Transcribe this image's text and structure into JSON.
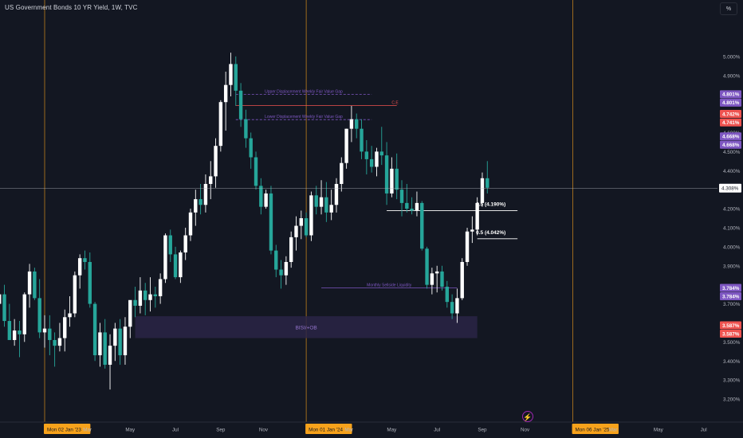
{
  "header": {
    "title": "US Government Bonds 10 YR Yield, 1W, TVC",
    "unit": "%"
  },
  "chart_data": {
    "type": "candlestick",
    "title": "US Government Bonds 10 YR Yield, 1W, TVC",
    "ylim": [
      3.15,
      5.15
    ],
    "y_ticks": [
      "5.000%",
      "4.900%",
      "4.600%",
      "4.500%",
      "4.400%",
      "4.200%",
      "4.100%",
      "4.000%",
      "3.900%",
      "3.700%",
      "3.500%",
      "3.400%",
      "3.300%",
      "3.200%"
    ],
    "x_labels": [
      {
        "label": "Nov",
        "week": -10
      },
      {
        "label": "Mon 02 Jan '23",
        "week": 0,
        "highlight": true
      },
      {
        "label": "Mar",
        "week": 8.5
      },
      {
        "label": "May",
        "week": 17
      },
      {
        "label": "Jul",
        "week": 26
      },
      {
        "label": "Sep",
        "week": 35
      },
      {
        "label": "Nov",
        "week": 43.5
      },
      {
        "label": "Mon 01 Jan '24",
        "week": 52,
        "highlight": true
      },
      {
        "label": "Mar",
        "week": 60.5
      },
      {
        "label": "May",
        "week": 69
      },
      {
        "label": "Jul",
        "week": 78
      },
      {
        "label": "Sep",
        "week": 87
      },
      {
        "label": "Nov",
        "week": 95.5
      },
      {
        "label": "Mon 06 Jan '25",
        "week": 105,
        "highlight": true
      },
      {
        "label": "Mar",
        "week": 113
      },
      {
        "label": "May",
        "week": 122
      },
      {
        "label": "Jul",
        "week": 131
      }
    ],
    "vlines_weeks": [
      0,
      52,
      105
    ],
    "last_price": "4.308%",
    "price_labels": [
      {
        "text": "4.801%",
        "value": 4.801,
        "color": "#7e57c2"
      },
      {
        "text": "4.801%",
        "value": 4.801,
        "color": "#7e57c2"
      },
      {
        "text": "4.742%",
        "value": 4.742,
        "color": "#ef5350"
      },
      {
        "text": "4.741%",
        "value": 4.741,
        "color": "#ef5350"
      },
      {
        "text": "4.668%",
        "value": 4.668,
        "color": "#7e57c2"
      },
      {
        "text": "4.668%",
        "value": 4.668,
        "color": "#7e57c2"
      },
      {
        "text": "3.784%",
        "value": 3.784,
        "color": "#7e57c2"
      },
      {
        "text": "3.784%",
        "value": 3.784,
        "color": "#7e57c2"
      },
      {
        "text": "3.587%",
        "value": 3.587,
        "color": "#ef5350"
      },
      {
        "text": "3.587%",
        "value": 3.587,
        "color": "#ef5350"
      }
    ],
    "annotations": [
      {
        "text": "Upper Displacement Weekly Fair Value Gap",
        "value": 4.801,
        "w0": 38,
        "w1": 65,
        "style": "dashed",
        "color": "#7e57c2"
      },
      {
        "text": "Lower Displacement Weekly Fair Value Gap",
        "value": 4.668,
        "w0": 38,
        "w1": 65,
        "style": "dashed",
        "color": "#7e57c2"
      },
      {
        "text": "C.E",
        "value": 4.742,
        "w0": 38,
        "w1": 70,
        "style": "solid",
        "color": "#ef5350"
      },
      {
        "text": "Monthly Sellside Liquidity",
        "value": 3.784,
        "w0": 55,
        "w1": 82,
        "style": "solid",
        "color": "#7e57c2"
      },
      {
        "text": "0.5 (4.190%)",
        "value": 4.19,
        "w0": 68,
        "w1": 94,
        "style": "solid",
        "color": "#ffffff"
      },
      {
        "text": "0.5 (4.042%)",
        "value": 4.042,
        "w0": 86,
        "w1": 94,
        "style": "solid",
        "color": "#ffffff"
      }
    ],
    "zones": [
      {
        "text": "BISI/+OB",
        "y0": 3.52,
        "y1": 3.635,
        "w0": 18,
        "w1": 86,
        "color": "#2a2545"
      }
    ],
    "candles": [
      [
        -12,
        4.17,
        4.25,
        4.05,
        4.08
      ],
      [
        -11,
        4.08,
        4.12,
        3.8,
        3.83
      ],
      [
        -10,
        3.83,
        3.91,
        3.65,
        3.7
      ],
      [
        -9,
        3.7,
        3.77,
        3.62,
        3.75
      ],
      [
        -8,
        3.75,
        3.8,
        3.58,
        3.61
      ],
      [
        -7,
        3.61,
        3.7,
        3.51,
        3.51
      ],
      [
        -6,
        3.51,
        3.62,
        3.48,
        3.56
      ],
      [
        -5,
        3.56,
        3.61,
        3.42,
        3.54
      ],
      [
        -4,
        3.54,
        3.76,
        3.5,
        3.75
      ],
      [
        -3,
        3.75,
        3.91,
        3.68,
        3.87
      ],
      [
        -2,
        3.87,
        3.89,
        3.72,
        3.73
      ],
      [
        -1,
        3.73,
        3.83,
        3.52,
        3.55
      ],
      [
        0,
        3.55,
        3.64,
        3.47,
        3.57
      ],
      [
        1,
        3.57,
        3.64,
        3.43,
        3.51
      ],
      [
        2,
        3.51,
        3.55,
        3.37,
        3.48
      ],
      [
        3,
        3.48,
        3.6,
        3.45,
        3.52
      ],
      [
        4,
        3.52,
        3.67,
        3.45,
        3.63
      ],
      [
        5,
        3.63,
        3.74,
        3.58,
        3.65
      ],
      [
        6,
        3.65,
        3.87,
        3.63,
        3.85
      ],
      [
        7,
        3.85,
        3.96,
        3.78,
        3.94
      ],
      [
        8,
        3.94,
        3.98,
        3.88,
        3.92
      ],
      [
        9,
        3.92,
        3.97,
        3.68,
        3.7
      ],
      [
        10,
        3.7,
        3.71,
        3.4,
        3.43
      ],
      [
        11,
        3.43,
        3.6,
        3.37,
        3.55
      ],
      [
        12,
        3.55,
        3.62,
        3.36,
        3.38
      ],
      [
        13,
        3.38,
        3.54,
        3.25,
        3.48
      ],
      [
        14,
        3.48,
        3.6,
        3.4,
        3.57
      ],
      [
        15,
        3.57,
        3.62,
        3.38,
        3.43
      ],
      [
        16,
        3.43,
        3.63,
        3.38,
        3.58
      ],
      [
        17,
        3.58,
        3.71,
        3.52,
        3.72
      ],
      [
        18,
        3.72,
        3.79,
        3.63,
        3.69
      ],
      [
        19,
        3.69,
        3.84,
        3.65,
        3.77
      ],
      [
        20,
        3.77,
        3.81,
        3.64,
        3.72
      ],
      [
        21,
        3.72,
        3.84,
        3.66,
        3.75
      ],
      [
        22,
        3.75,
        3.79,
        3.68,
        3.74
      ],
      [
        23,
        3.74,
        3.86,
        3.7,
        3.83
      ],
      [
        24,
        3.83,
        4.07,
        3.81,
        4.06
      ],
      [
        25,
        4.06,
        4.09,
        3.92,
        3.96
      ],
      [
        26,
        3.96,
        4.0,
        3.83,
        3.84
      ],
      [
        27,
        3.84,
        3.98,
        3.81,
        3.97
      ],
      [
        28,
        3.97,
        4.1,
        3.93,
        4.06
      ],
      [
        29,
        4.06,
        4.2,
        4.03,
        4.18
      ],
      [
        30,
        4.18,
        4.3,
        4.11,
        4.25
      ],
      [
        31,
        4.25,
        4.33,
        4.17,
        4.22
      ],
      [
        32,
        4.22,
        4.38,
        4.18,
        4.33
      ],
      [
        33,
        4.33,
        4.45,
        4.25,
        4.37
      ],
      [
        34,
        4.37,
        4.57,
        4.31,
        4.53
      ],
      [
        35,
        4.53,
        4.77,
        4.5,
        4.76
      ],
      [
        36,
        4.76,
        4.92,
        4.61,
        4.85
      ],
      [
        37,
        4.85,
        5.02,
        4.79,
        4.96
      ],
      [
        38,
        4.96,
        5.0,
        4.74,
        4.82
      ],
      [
        39,
        4.82,
        4.86,
        4.63,
        4.67
      ],
      [
        40,
        4.67,
        4.72,
        4.52,
        4.57
      ],
      [
        41,
        4.57,
        4.6,
        4.41,
        4.47
      ],
      [
        42,
        4.47,
        4.5,
        4.3,
        4.32
      ],
      [
        43,
        4.32,
        4.36,
        4.17,
        4.21
      ],
      [
        44,
        4.21,
        4.3,
        4.2,
        4.28
      ],
      [
        45,
        4.28,
        4.32,
        3.96,
        3.98
      ],
      [
        46,
        3.98,
        4.01,
        3.84,
        3.88
      ],
      [
        47,
        3.88,
        3.93,
        3.78,
        3.85
      ],
      [
        48,
        3.85,
        3.95,
        3.8,
        3.92
      ],
      [
        49,
        3.92,
        4.08,
        3.89,
        4.05
      ],
      [
        50,
        4.05,
        4.16,
        3.98,
        4.11
      ],
      [
        51,
        4.11,
        4.19,
        4.04,
        4.15
      ],
      [
        52,
        4.15,
        4.18,
        4.05,
        4.06
      ],
      [
        53,
        4.06,
        4.29,
        4.03,
        4.27
      ],
      [
        54,
        4.27,
        4.32,
        4.17,
        4.21
      ],
      [
        55,
        4.21,
        4.35,
        4.17,
        4.26
      ],
      [
        56,
        4.26,
        4.34,
        4.13,
        4.18
      ],
      [
        57,
        4.18,
        4.3,
        4.14,
        4.22
      ],
      [
        58,
        4.22,
        4.36,
        4.18,
        4.33
      ],
      [
        59,
        4.33,
        4.47,
        4.29,
        4.44
      ],
      [
        60,
        4.44,
        4.62,
        4.41,
        4.62
      ],
      [
        61,
        4.62,
        4.74,
        4.55,
        4.67
      ],
      [
        62,
        4.67,
        4.7,
        4.57,
        4.62
      ],
      [
        63,
        4.62,
        4.67,
        4.46,
        4.5
      ],
      [
        64,
        4.5,
        4.56,
        4.38,
        4.46
      ],
      [
        65,
        4.46,
        4.53,
        4.39,
        4.42
      ],
      [
        66,
        4.42,
        4.52,
        4.37,
        4.5
      ],
      [
        67,
        4.5,
        4.63,
        4.43,
        4.48
      ],
      [
        68,
        4.48,
        4.55,
        4.22,
        4.28
      ],
      [
        69,
        4.28,
        4.47,
        4.26,
        4.41
      ],
      [
        70,
        4.41,
        4.49,
        4.25,
        4.3
      ],
      [
        71,
        4.3,
        4.35,
        4.16,
        4.23
      ],
      [
        72,
        4.23,
        4.33,
        4.18,
        4.2
      ],
      [
        73,
        4.2,
        4.26,
        4.17,
        4.19
      ],
      [
        74,
        4.19,
        4.29,
        4.16,
        4.23
      ],
      [
        75,
        4.23,
        4.24,
        3.98,
        3.99
      ],
      [
        76,
        3.99,
        4.0,
        3.78,
        3.8
      ],
      [
        77,
        3.8,
        3.89,
        3.75,
        3.86
      ],
      [
        78,
        3.86,
        3.9,
        3.76,
        3.87
      ],
      [
        79,
        3.87,
        3.9,
        3.77,
        3.79
      ],
      [
        80,
        3.79,
        3.82,
        3.68,
        3.71
      ],
      [
        81,
        3.71,
        3.75,
        3.62,
        3.65
      ],
      [
        82,
        3.65,
        3.78,
        3.6,
        3.73
      ],
      [
        83,
        3.73,
        3.94,
        3.72,
        3.92
      ],
      [
        84,
        3.92,
        4.1,
        3.9,
        4.08
      ],
      [
        85,
        4.08,
        4.16,
        4.02,
        4.09
      ],
      [
        86,
        4.09,
        4.26,
        4.06,
        4.23
      ],
      [
        87,
        4.23,
        4.39,
        4.21,
        4.36
      ],
      [
        88,
        4.36,
        4.45,
        4.28,
        4.31
      ]
    ]
  }
}
